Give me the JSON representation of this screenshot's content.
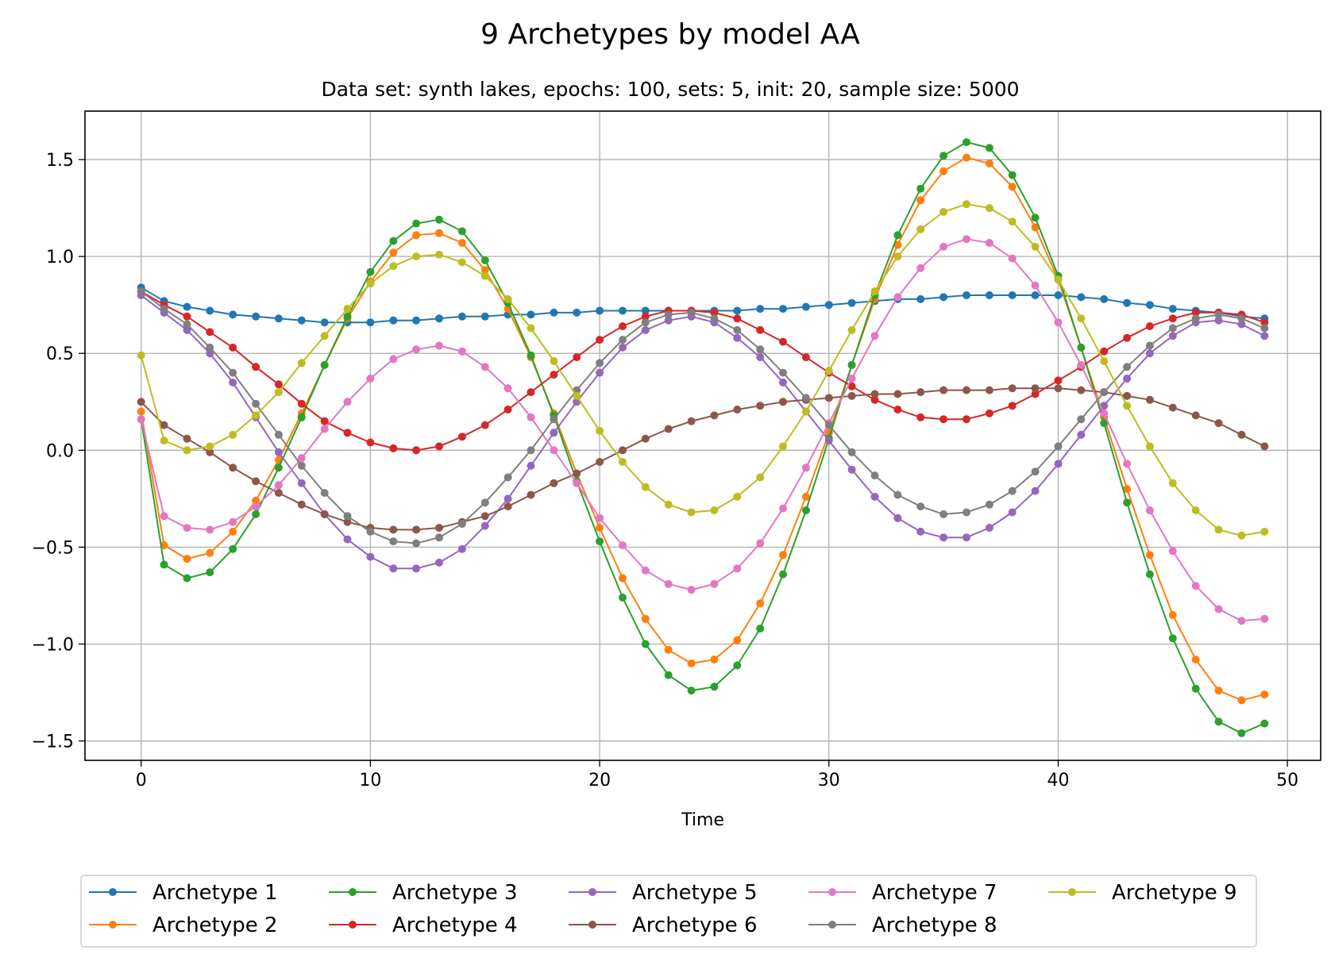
{
  "chart_data": {
    "type": "line",
    "title": "9 Archetypes by model AA",
    "subtitle": "Data set: synth lakes, epochs: 100, sets: 5, init: 20, sample size: 5000",
    "xlabel": "Time",
    "ylabel": "",
    "xlim": [
      -2.45,
      51.45
    ],
    "ylim": [
      -1.6,
      1.75
    ],
    "xticks": [
      0,
      10,
      20,
      30,
      40,
      50
    ],
    "yticks": [
      -1.5,
      -1.0,
      -0.5,
      0.0,
      0.5,
      1.0,
      1.5
    ],
    "xtick_labels": [
      "0",
      "10",
      "20",
      "30",
      "40",
      "50"
    ],
    "ytick_labels": [
      "−1.5",
      "−1.0",
      "−0.5",
      "0.0",
      "0.5",
      "1.0",
      "1.5"
    ],
    "grid": true,
    "legend_position": "bottom-center, outside plot, 5 columns",
    "x": [
      0,
      1,
      2,
      3,
      4,
      5,
      6,
      7,
      8,
      9,
      10,
      11,
      12,
      13,
      14,
      15,
      16,
      17,
      18,
      19,
      20,
      21,
      22,
      23,
      24,
      25,
      26,
      27,
      28,
      29,
      30,
      31,
      32,
      33,
      34,
      35,
      36,
      37,
      38,
      39,
      40,
      41,
      42,
      43,
      44,
      45,
      46,
      47,
      48,
      49
    ],
    "series": [
      {
        "name": "Archetype 1",
        "color": "#1f77b4",
        "values": [
          0.84,
          0.77,
          0.74,
          0.72,
          0.7,
          0.69,
          0.68,
          0.67,
          0.66,
          0.66,
          0.66,
          0.67,
          0.67,
          0.68,
          0.69,
          0.69,
          0.7,
          0.7,
          0.71,
          0.71,
          0.72,
          0.72,
          0.72,
          0.72,
          0.72,
          0.72,
          0.72,
          0.73,
          0.73,
          0.74,
          0.75,
          0.76,
          0.77,
          0.78,
          0.78,
          0.79,
          0.8,
          0.8,
          0.8,
          0.8,
          0.8,
          0.79,
          0.78,
          0.76,
          0.75,
          0.73,
          0.72,
          0.71,
          0.69,
          0.68
        ]
      },
      {
        "name": "Archetype 2",
        "color": "#ff7f0e",
        "values": [
          0.2,
          -0.49,
          -0.56,
          -0.53,
          -0.42,
          -0.26,
          -0.05,
          0.19,
          0.44,
          0.68,
          0.87,
          1.02,
          1.11,
          1.12,
          1.07,
          0.93,
          0.73,
          0.48,
          0.19,
          -0.12,
          -0.4,
          -0.66,
          -0.87,
          -1.03,
          -1.1,
          -1.08,
          -0.98,
          -0.79,
          -0.54,
          -0.24,
          0.09,
          0.44,
          0.78,
          1.06,
          1.29,
          1.44,
          1.51,
          1.48,
          1.36,
          1.15,
          0.88,
          0.53,
          0.17,
          -0.2,
          -0.54,
          -0.85,
          -1.08,
          -1.24,
          -1.29,
          -1.26
        ]
      },
      {
        "name": "Archetype 3",
        "color": "#2ca02c",
        "values": [
          0.16,
          -0.59,
          -0.66,
          -0.63,
          -0.51,
          -0.33,
          -0.09,
          0.17,
          0.44,
          0.69,
          0.92,
          1.08,
          1.17,
          1.19,
          1.13,
          0.98,
          0.76,
          0.49,
          0.18,
          -0.16,
          -0.47,
          -0.76,
          -1.0,
          -1.16,
          -1.24,
          -1.22,
          -1.11,
          -0.92,
          -0.64,
          -0.31,
          0.06,
          0.44,
          0.8,
          1.11,
          1.35,
          1.52,
          1.59,
          1.56,
          1.42,
          1.2,
          0.9,
          0.53,
          0.14,
          -0.27,
          -0.64,
          -0.97,
          -1.23,
          -1.4,
          -1.46,
          -1.41
        ]
      },
      {
        "name": "Archetype 4",
        "color": "#d62728",
        "values": [
          0.82,
          0.75,
          0.69,
          0.61,
          0.53,
          0.43,
          0.34,
          0.24,
          0.15,
          0.09,
          0.04,
          0.01,
          0.0,
          0.02,
          0.07,
          0.13,
          0.21,
          0.3,
          0.39,
          0.48,
          0.57,
          0.64,
          0.69,
          0.72,
          0.72,
          0.71,
          0.68,
          0.62,
          0.56,
          0.48,
          0.4,
          0.33,
          0.26,
          0.21,
          0.17,
          0.16,
          0.16,
          0.19,
          0.23,
          0.29,
          0.36,
          0.43,
          0.51,
          0.58,
          0.64,
          0.68,
          0.71,
          0.71,
          0.7,
          0.66
        ]
      },
      {
        "name": "Archetype 5",
        "color": "#9467bd",
        "values": [
          0.8,
          0.71,
          0.62,
          0.5,
          0.35,
          0.17,
          -0.01,
          -0.17,
          -0.33,
          -0.46,
          -0.55,
          -0.61,
          -0.61,
          -0.58,
          -0.51,
          -0.39,
          -0.25,
          -0.08,
          0.09,
          0.25,
          0.4,
          0.53,
          0.62,
          0.67,
          0.69,
          0.66,
          0.58,
          0.48,
          0.35,
          0.2,
          0.05,
          -0.1,
          -0.24,
          -0.35,
          -0.42,
          -0.45,
          -0.45,
          -0.4,
          -0.32,
          -0.21,
          -0.07,
          0.08,
          0.23,
          0.37,
          0.5,
          0.59,
          0.66,
          0.67,
          0.65,
          0.59
        ]
      },
      {
        "name": "Archetype 6",
        "color": "#8c564b",
        "values": [
          0.25,
          0.13,
          0.06,
          -0.01,
          -0.09,
          -0.16,
          -0.22,
          -0.28,
          -0.33,
          -0.37,
          -0.4,
          -0.41,
          -0.41,
          -0.4,
          -0.37,
          -0.34,
          -0.29,
          -0.23,
          -0.17,
          -0.12,
          -0.06,
          0.0,
          0.06,
          0.11,
          0.15,
          0.18,
          0.21,
          0.23,
          0.25,
          0.26,
          0.27,
          0.28,
          0.29,
          0.29,
          0.3,
          0.31,
          0.31,
          0.31,
          0.32,
          0.32,
          0.32,
          0.31,
          0.3,
          0.28,
          0.26,
          0.22,
          0.18,
          0.14,
          0.08,
          0.02
        ]
      },
      {
        "name": "Archetype 7",
        "color": "#e377c2",
        "values": [
          0.16,
          -0.34,
          -0.4,
          -0.41,
          -0.37,
          -0.29,
          -0.18,
          -0.04,
          0.11,
          0.25,
          0.37,
          0.47,
          0.52,
          0.54,
          0.51,
          0.43,
          0.32,
          0.17,
          0.0,
          -0.17,
          -0.35,
          -0.49,
          -0.62,
          -0.69,
          -0.72,
          -0.69,
          -0.61,
          -0.48,
          -0.3,
          -0.09,
          0.14,
          0.37,
          0.59,
          0.79,
          0.94,
          1.05,
          1.09,
          1.07,
          0.99,
          0.85,
          0.66,
          0.44,
          0.19,
          -0.07,
          -0.31,
          -0.52,
          -0.7,
          -0.82,
          -0.88,
          -0.87
        ]
      },
      {
        "name": "Archetype 8",
        "color": "#7f7f7f",
        "values": [
          0.82,
          0.73,
          0.65,
          0.53,
          0.4,
          0.24,
          0.08,
          -0.08,
          -0.22,
          -0.34,
          -0.42,
          -0.47,
          -0.48,
          -0.45,
          -0.38,
          -0.27,
          -0.14,
          0.0,
          0.16,
          0.31,
          0.45,
          0.57,
          0.66,
          0.7,
          0.71,
          0.68,
          0.62,
          0.52,
          0.4,
          0.27,
          0.13,
          -0.01,
          -0.13,
          -0.23,
          -0.29,
          -0.33,
          -0.32,
          -0.28,
          -0.21,
          -0.11,
          0.02,
          0.16,
          0.3,
          0.43,
          0.54,
          0.63,
          0.68,
          0.7,
          0.68,
          0.63
        ]
      },
      {
        "name": "Archetype 9",
        "color": "#bcbd22",
        "values": [
          0.49,
          0.05,
          0.0,
          0.02,
          0.08,
          0.18,
          0.3,
          0.45,
          0.59,
          0.73,
          0.86,
          0.95,
          1.0,
          1.01,
          0.97,
          0.9,
          0.78,
          0.63,
          0.46,
          0.28,
          0.1,
          -0.06,
          -0.19,
          -0.28,
          -0.32,
          -0.31,
          -0.24,
          -0.14,
          0.02,
          0.2,
          0.41,
          0.62,
          0.82,
          1.0,
          1.14,
          1.23,
          1.27,
          1.25,
          1.18,
          1.05,
          0.88,
          0.68,
          0.46,
          0.23,
          0.02,
          -0.17,
          -0.31,
          -0.41,
          -0.44,
          -0.42
        ]
      }
    ]
  }
}
